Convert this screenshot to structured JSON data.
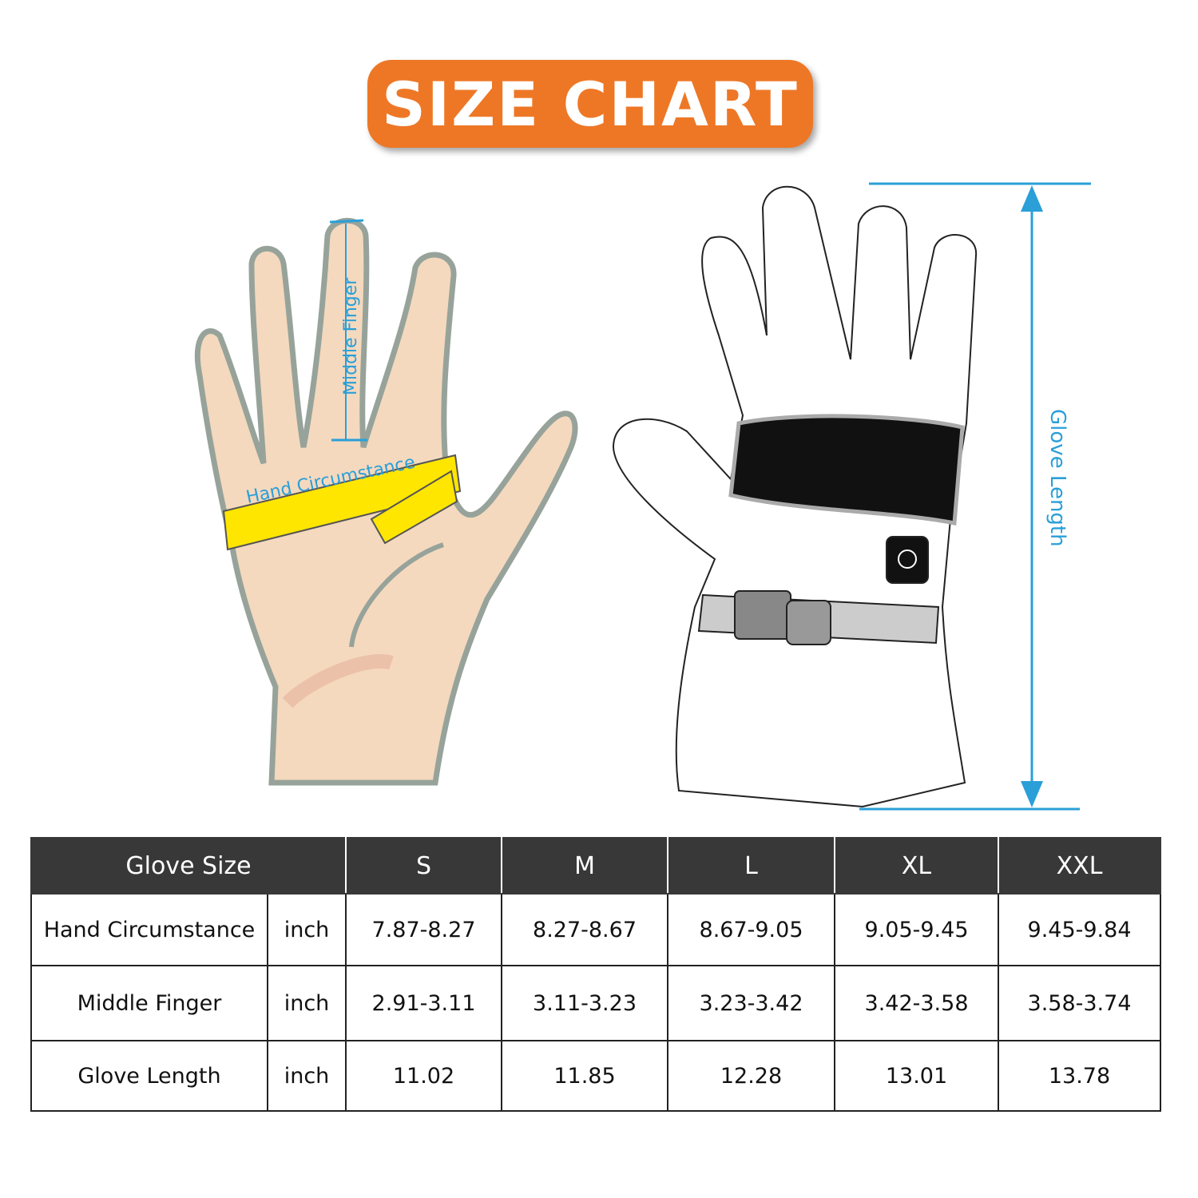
{
  "title": "SIZE CHART",
  "hand_labels": {
    "middle_finger": "Middle Finger",
    "hand_circumstance": "Hand Circumstance"
  },
  "glove_labels": {
    "glove_length": "Glove Length"
  },
  "colors": {
    "title_bg": "#EE7726",
    "accent_blue": "#2A9FD8",
    "table_header": "#383838",
    "skin": "#F4D9BE",
    "tape": "#FFE600"
  },
  "table": {
    "header": [
      "Glove Size",
      "S",
      "M",
      "L",
      "XL",
      "XXL"
    ],
    "rows": [
      {
        "label": "Hand Circumstance",
        "unit": "inch",
        "values": [
          "7.87-8.27",
          "8.27-8.67",
          "8.67-9.05",
          "9.05-9.45",
          "9.45-9.84"
        ]
      },
      {
        "label": "Middle Finger",
        "unit": "inch",
        "values": [
          "2.91-3.11",
          "3.11-3.23",
          "3.23-3.42",
          "3.42-3.58",
          "3.58-3.74"
        ]
      },
      {
        "label": "Glove Length",
        "unit": "inch",
        "values": [
          "11.02",
          "11.85",
          "12.28",
          "13.01",
          "13.78"
        ]
      }
    ]
  }
}
